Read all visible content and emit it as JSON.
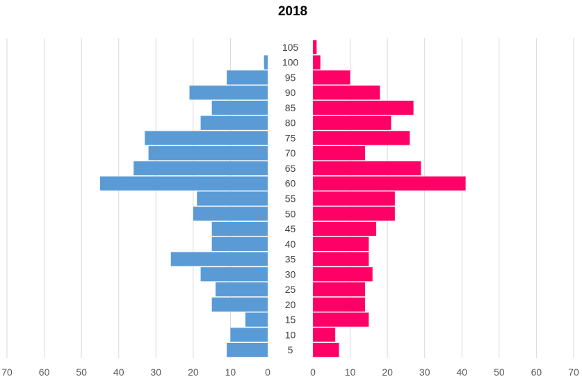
{
  "chart_data": {
    "type": "bar",
    "title": "2018",
    "orientation": "horizontal",
    "layout": "population-pyramid",
    "categories": [
      "5",
      "10",
      "15",
      "20",
      "25",
      "30",
      "35",
      "40",
      "45",
      "50",
      "55",
      "60",
      "65",
      "70",
      "75",
      "80",
      "85",
      "90",
      "95",
      "100",
      "105"
    ],
    "series": [
      {
        "color": "#5b9bd5",
        "side": "left",
        "values": [
          11,
          10,
          6,
          15,
          14,
          18,
          26,
          15,
          15,
          20,
          19,
          45,
          36,
          32,
          33,
          18,
          15,
          21,
          11,
          1,
          0
        ]
      },
      {
        "color": "#ff0066",
        "side": "right",
        "values": [
          7,
          6,
          15,
          14,
          14,
          16,
          15,
          15,
          17,
          22,
          22,
          41,
          29,
          14,
          26,
          21,
          27,
          18,
          10,
          2,
          1
        ]
      }
    ],
    "xlim": [
      0,
      70
    ],
    "left_ticks": [
      "70",
      "60",
      "50",
      "40",
      "30",
      "20",
      "10",
      "0"
    ],
    "right_ticks": [
      "0",
      "10",
      "20",
      "30",
      "40",
      "50",
      "60",
      "70"
    ],
    "grid": true
  }
}
